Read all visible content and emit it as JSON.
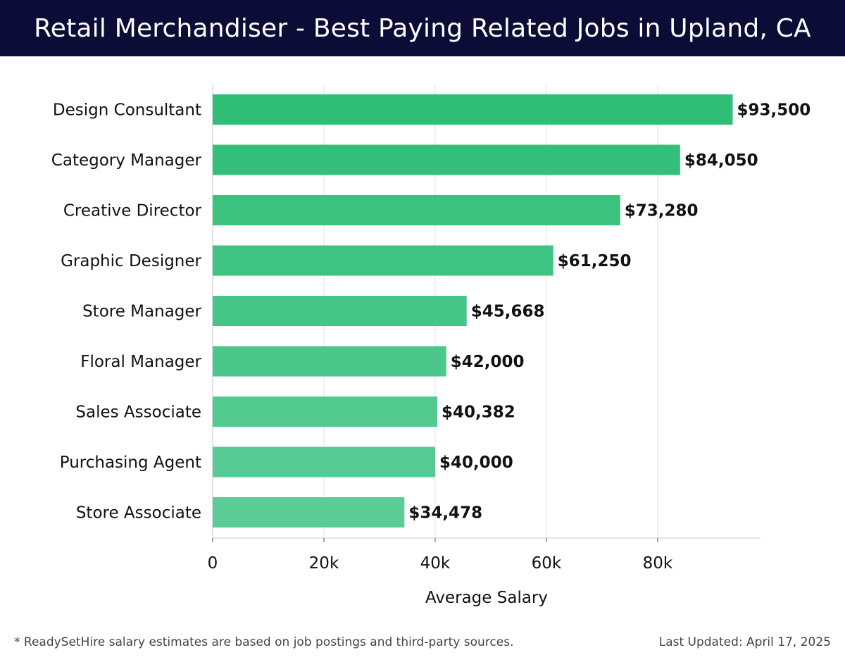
{
  "header": {
    "title": "Retail Merchandiser - Best Paying Related Jobs in Upland, CA"
  },
  "chart_data": {
    "type": "bar",
    "orientation": "horizontal",
    "title": "Retail Merchandiser - Best Paying Related Jobs in Upland, CA",
    "xlabel": "Average Salary",
    "ylabel": "",
    "categories": [
      "Design Consultant",
      "Category Manager",
      "Creative Director",
      "Graphic Designer",
      "Store Manager",
      "Floral Manager",
      "Sales Associate",
      "Purchasing Agent",
      "Store Associate"
    ],
    "values": [
      93500,
      84050,
      73280,
      61250,
      45668,
      42000,
      40382,
      40000,
      34478
    ],
    "value_labels": [
      "$93,500",
      "$84,050",
      "$73,280",
      "$61,250",
      "$45,668",
      "$42,000",
      "$40,382",
      "$40,000",
      "$34,478"
    ],
    "xlim": [
      0,
      98500
    ],
    "x_ticks": [
      0,
      20000,
      40000,
      60000,
      80000
    ],
    "x_tick_labels": [
      "0",
      "20k",
      "40k",
      "60k",
      "80k"
    ],
    "grid": true,
    "bar_color_dark": "#2ebe76",
    "bar_color_light": "#5ccc97",
    "grid_color": "#e3e3e3",
    "axis_color": "#c8c8c8"
  },
  "footer": {
    "note": "* ReadySetHire salary estimates are based on job postings and third-party sources.",
    "updated": "Last Updated: April 17, 2025"
  },
  "colors": {
    "header_background": "#0b0d37",
    "header_text": "#ffffff"
  }
}
